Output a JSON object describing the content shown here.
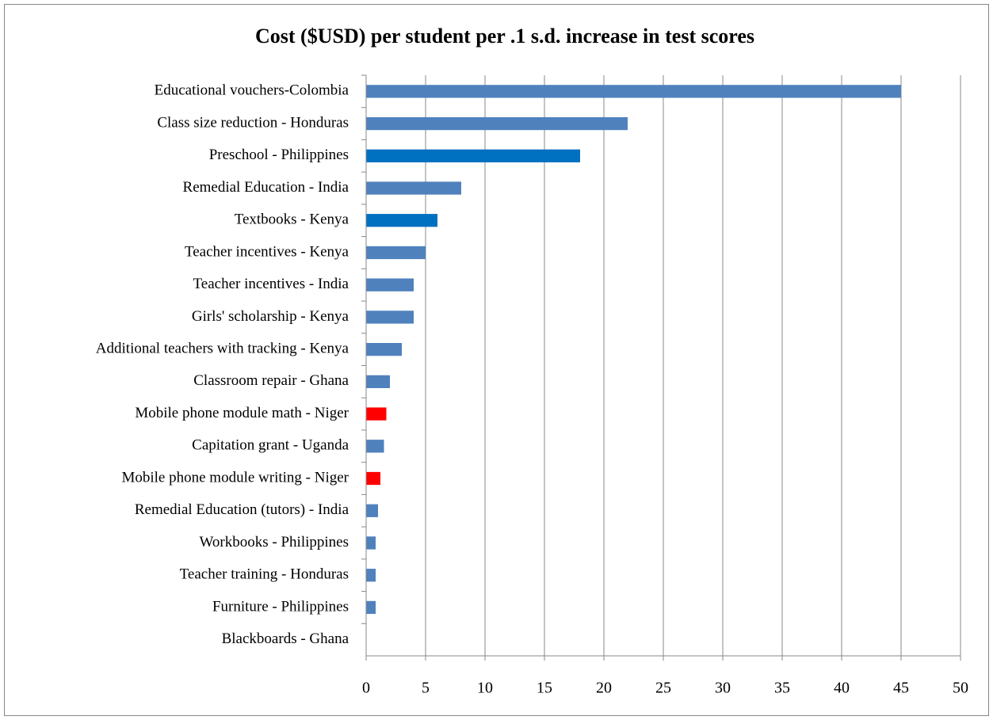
{
  "chart_data": {
    "type": "barh",
    "title": "Cost ($USD) per student per .1 s.d. increase in test scores",
    "categories": [
      "Educational vouchers-Colombia",
      "Class size reduction - Honduras",
      "Preschool - Philippines",
      "Remedial Education - India",
      "Textbooks - Kenya",
      "Teacher incentives - Kenya",
      "Teacher incentives - India",
      "Girls' scholarship - Kenya",
      "Additional teachers with tracking - Kenya",
      "Classroom repair - Ghana",
      "Mobile phone module math - Niger",
      "Capitation grant - Uganda",
      "Mobile phone module writing - Niger",
      "Remedial Education (tutors) - India",
      "Workbooks - Philippines",
      "Teacher training - Honduras",
      "Furniture - Philippines",
      "Blackboards - Ghana"
    ],
    "values": [
      45,
      22,
      18,
      8,
      6,
      5,
      4,
      4,
      3,
      2,
      1.7,
      1.5,
      1.2,
      1,
      0.8,
      0.8,
      0.8,
      0
    ],
    "colors": [
      "#4f81bd",
      "#4f81bd",
      "#0070c0",
      "#4f81bd",
      "#0070c0",
      "#4f81bd",
      "#4f81bd",
      "#4f81bd",
      "#4f81bd",
      "#4f81bd",
      "#ff0000",
      "#4f81bd",
      "#ff0000",
      "#4f81bd",
      "#4f81bd",
      "#4f81bd",
      "#4f81bd",
      "#4f81bd"
    ],
    "xlim": [
      0,
      50
    ],
    "xticks": [
      0,
      5,
      10,
      15,
      20,
      25,
      30,
      35,
      40,
      45,
      50
    ],
    "grid": true
  }
}
